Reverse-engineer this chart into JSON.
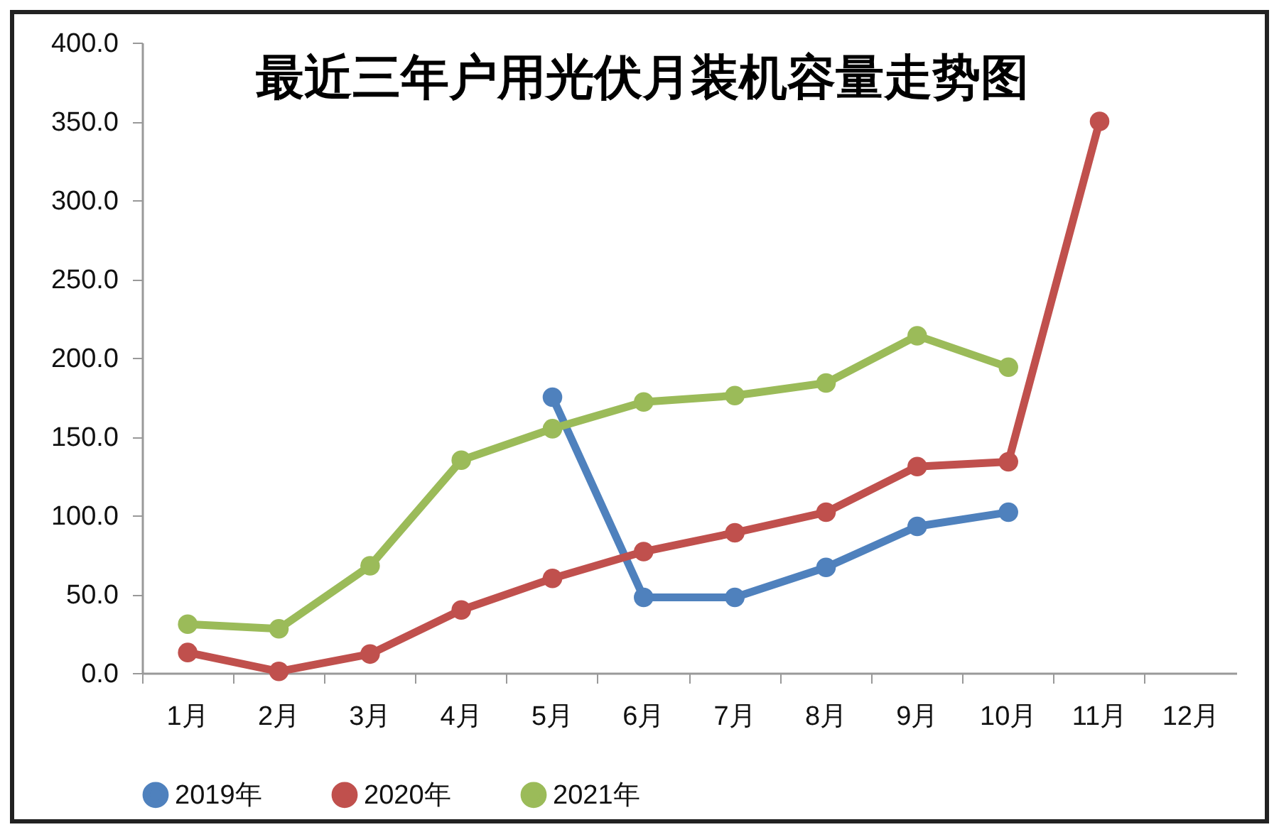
{
  "chart_data": {
    "type": "line",
    "title": "最近三年户用光伏月装机容量走势图",
    "categories": [
      "1月",
      "2月",
      "3月",
      "4月",
      "5月",
      "6月",
      "7月",
      "8月",
      "9月",
      "10月",
      "11月",
      "12月"
    ],
    "series": [
      {
        "name": "2019年",
        "color": "#4f81bd",
        "values": [
          null,
          null,
          null,
          null,
          175,
          48,
          48,
          67,
          93,
          102,
          null,
          null
        ]
      },
      {
        "name": "2020年",
        "color": "#c0504d",
        "values": [
          13,
          1,
          12,
          40,
          60,
          77,
          89,
          102,
          131,
          134,
          350,
          null
        ]
      },
      {
        "name": "2021年",
        "color": "#9bbb59",
        "values": [
          31,
          28,
          68,
          135,
          155,
          172,
          176,
          184,
          214,
          194,
          null,
          null
        ]
      }
    ],
    "ylim": [
      0,
      400
    ],
    "yticks": [
      {
        "value": 0,
        "label": "0.0"
      },
      {
        "value": 50,
        "label": "50.0"
      },
      {
        "value": 100,
        "label": "100.0"
      },
      {
        "value": 150,
        "label": "150.0"
      },
      {
        "value": 200,
        "label": "200.0"
      },
      {
        "value": 250,
        "label": "250.0"
      },
      {
        "value": 300,
        "label": "300.0"
      },
      {
        "value": 350,
        "label": "350.0"
      },
      {
        "value": 400,
        "label": "400.0"
      }
    ],
    "grid": false,
    "legend": "bottom",
    "marker": "circle",
    "line_style": "solid"
  }
}
